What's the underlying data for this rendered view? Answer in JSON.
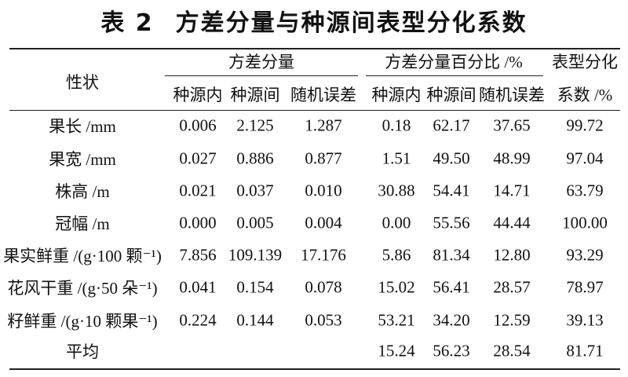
{
  "header": {
    "label": "表 2",
    "title": "方差分量与种源间表型分化系数"
  },
  "table": {
    "trait_header": "性状",
    "groups": [
      {
        "name": "方差分量",
        "columns": [
          "种源内",
          "种源间",
          "随机误差"
        ]
      },
      {
        "name": "方差分量百分比 /%",
        "columns": [
          "种源内",
          "种源间",
          "随机误差"
        ]
      }
    ],
    "coefficient_header": [
      "表型分化",
      "系数 /%"
    ],
    "rows": [
      {
        "trait": "果长 /mm",
        "variance": [
          "0.006",
          "2.125",
          "1.287"
        ],
        "percent": [
          "0.18",
          "62.17",
          "37.65"
        ],
        "coefficient": "99.72"
      },
      {
        "trait": "果宽 /mm",
        "variance": [
          "0.027",
          "0.886",
          "0.877"
        ],
        "percent": [
          "1.51",
          "49.50",
          "48.99"
        ],
        "coefficient": "97.04"
      },
      {
        "trait": "株高 /m",
        "variance": [
          "0.021",
          "0.037",
          "0.010"
        ],
        "percent": [
          "30.88",
          "54.41",
          "14.71"
        ],
        "coefficient": "63.79"
      },
      {
        "trait": "冠幅 /m",
        "variance": [
          "0.000",
          "0.005",
          "0.004"
        ],
        "percent": [
          "0.00",
          "55.56",
          "44.44"
        ],
        "coefficient": "100.00"
      },
      {
        "trait": "果实鲜重 /(g·100 颗⁻¹)",
        "variance": [
          "7.856",
          "109.139",
          "17.176"
        ],
        "percent": [
          "5.86",
          "81.34",
          "12.80"
        ],
        "coefficient": "93.29"
      },
      {
        "trait": "花风干重 /(g·50 朵⁻¹)",
        "variance": [
          "0.041",
          "0.154",
          "0.078"
        ],
        "percent": [
          "15.02",
          "56.41",
          "28.57"
        ],
        "coefficient": "78.97"
      },
      {
        "trait": "籽鲜重 /(g·10 颗果⁻¹)",
        "variance": [
          "0.224",
          "0.144",
          "0.053"
        ],
        "percent": [
          "53.21",
          "34.20",
          "12.59"
        ],
        "coefficient": "39.13"
      },
      {
        "trait": "平均",
        "percent": [
          "15.24",
          "56.23",
          "28.54"
        ],
        "coefficient": "81.71"
      }
    ]
  }
}
